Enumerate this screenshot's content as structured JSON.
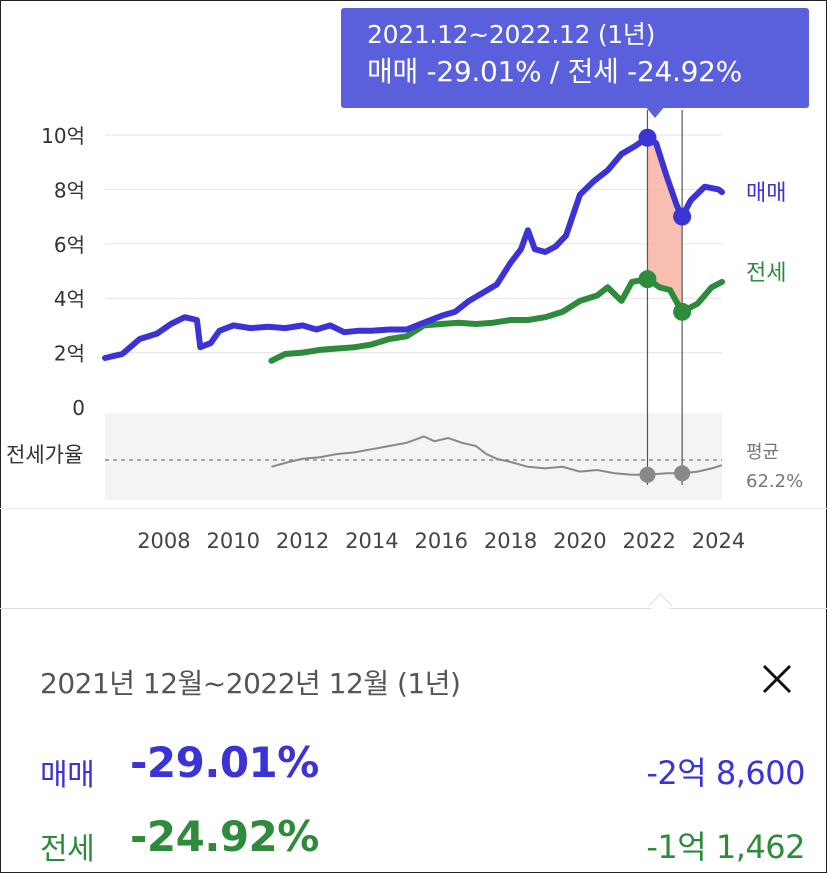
{
  "tooltip": {
    "period": "2021.12~2022.12 (1년)",
    "summary": "매매 -29.01%  /  전세 -24.92%"
  },
  "chart_data": {
    "type": "line",
    "title": "",
    "xlabel": "",
    "ylabel": "",
    "x_ticks": [
      "2008",
      "2010",
      "2012",
      "2014",
      "2016",
      "2018",
      "2020",
      "2022",
      "2024"
    ],
    "y_ticks": [
      "0",
      "2억",
      "4억",
      "6억",
      "8억",
      "10억"
    ],
    "ylim": [
      0,
      10
    ],
    "y_unit": "억",
    "colors": {
      "sale": "#3b33d6",
      "jeonse": "#2e8b3b",
      "ratio": "#888888",
      "highlight": "#f7b3a3"
    },
    "series": [
      {
        "name": "매매",
        "color": "#3b33d6",
        "points": [
          [
            2006.3,
            1.8
          ],
          [
            2006.8,
            1.95
          ],
          [
            2007.3,
            2.5
          ],
          [
            2007.8,
            2.7
          ],
          [
            2008.2,
            3.05
          ],
          [
            2008.6,
            3.3
          ],
          [
            2008.95,
            3.2
          ],
          [
            2009.05,
            2.2
          ],
          [
            2009.35,
            2.35
          ],
          [
            2009.6,
            2.8
          ],
          [
            2010.0,
            3.0
          ],
          [
            2010.5,
            2.9
          ],
          [
            2011.0,
            2.95
          ],
          [
            2011.5,
            2.9
          ],
          [
            2012.0,
            3.0
          ],
          [
            2012.4,
            2.85
          ],
          [
            2012.8,
            3.0
          ],
          [
            2013.2,
            2.75
          ],
          [
            2013.6,
            2.8
          ],
          [
            2014.0,
            2.8
          ],
          [
            2014.5,
            2.85
          ],
          [
            2015.0,
            2.85
          ],
          [
            2015.5,
            3.1
          ],
          [
            2016.0,
            3.35
          ],
          [
            2016.4,
            3.5
          ],
          [
            2016.8,
            3.9
          ],
          [
            2017.2,
            4.2
          ],
          [
            2017.6,
            4.5
          ],
          [
            2018.0,
            5.3
          ],
          [
            2018.3,
            5.8
          ],
          [
            2018.5,
            6.5
          ],
          [
            2018.7,
            5.8
          ],
          [
            2019.0,
            5.7
          ],
          [
            2019.3,
            5.9
          ],
          [
            2019.6,
            6.3
          ],
          [
            2020.0,
            7.8
          ],
          [
            2020.4,
            8.3
          ],
          [
            2020.8,
            8.7
          ],
          [
            2021.2,
            9.3
          ],
          [
            2021.6,
            9.6
          ],
          [
            2021.95,
            9.9
          ],
          [
            2022.2,
            9.7
          ],
          [
            2022.5,
            8.5
          ],
          [
            2022.8,
            7.4
          ],
          [
            2022.95,
            7.0
          ],
          [
            2023.2,
            7.6
          ],
          [
            2023.6,
            8.1
          ],
          [
            2024.0,
            8.0
          ],
          [
            2024.1,
            7.9
          ]
        ]
      },
      {
        "name": "전세",
        "color": "#2e8b3b",
        "points": [
          [
            2011.1,
            1.7
          ],
          [
            2011.5,
            1.95
          ],
          [
            2012.0,
            2.0
          ],
          [
            2012.5,
            2.1
          ],
          [
            2013.0,
            2.15
          ],
          [
            2013.5,
            2.2
          ],
          [
            2014.0,
            2.3
          ],
          [
            2014.5,
            2.5
          ],
          [
            2015.0,
            2.6
          ],
          [
            2015.5,
            3.0
          ],
          [
            2016.0,
            3.05
          ],
          [
            2016.5,
            3.1
          ],
          [
            2017.0,
            3.05
          ],
          [
            2017.5,
            3.1
          ],
          [
            2018.0,
            3.2
          ],
          [
            2018.5,
            3.2
          ],
          [
            2019.0,
            3.3
          ],
          [
            2019.5,
            3.5
          ],
          [
            2020.0,
            3.9
          ],
          [
            2020.5,
            4.1
          ],
          [
            2020.8,
            4.4
          ],
          [
            2021.2,
            3.9
          ],
          [
            2021.5,
            4.6
          ],
          [
            2021.95,
            4.7
          ],
          [
            2022.3,
            4.4
          ],
          [
            2022.6,
            4.3
          ],
          [
            2022.95,
            3.5
          ],
          [
            2023.4,
            3.8
          ],
          [
            2023.8,
            4.4
          ],
          [
            2024.1,
            4.6
          ]
        ]
      }
    ],
    "ratio_series": {
      "name": "전세가율",
      "average_label": "평균",
      "average_value": "62.2%",
      "points": [
        [
          2011.1,
          57
        ],
        [
          2011.6,
          60
        ],
        [
          2012.0,
          62
        ],
        [
          2012.5,
          63
        ],
        [
          2013.0,
          65
        ],
        [
          2013.5,
          66
        ],
        [
          2014.0,
          68
        ],
        [
          2014.5,
          70
        ],
        [
          2015.0,
          72
        ],
        [
          2015.5,
          76
        ],
        [
          2015.8,
          73
        ],
        [
          2016.2,
          75
        ],
        [
          2016.6,
          72
        ],
        [
          2017.0,
          70
        ],
        [
          2017.3,
          65
        ],
        [
          2017.6,
          62
        ],
        [
          2018.0,
          60
        ],
        [
          2018.5,
          57
        ],
        [
          2019.0,
          56
        ],
        [
          2019.5,
          57
        ],
        [
          2020.0,
          54
        ],
        [
          2020.5,
          55
        ],
        [
          2021.0,
          53
        ],
        [
          2021.5,
          52
        ],
        [
          2021.95,
          52
        ],
        [
          2022.5,
          53
        ],
        [
          2022.95,
          53
        ],
        [
          2023.4,
          54
        ],
        [
          2023.8,
          56
        ],
        [
          2024.1,
          58
        ]
      ]
    },
    "highlight_range": [
      2021.95,
      2022.95
    ],
    "series_labels": [
      "매매",
      "전세"
    ],
    "ratio_label": "전세가율"
  },
  "panel": {
    "title": "2021년 12월~2022년 12월 (1년)",
    "close_label": "×",
    "rows": [
      {
        "label": "매매",
        "percent": "-29.01%",
        "amount": "-2억 8,600",
        "color": "#3b33d6"
      },
      {
        "label": "전세",
        "percent": "-24.92%",
        "amount": "-1억 1,462",
        "color": "#2e8b3b"
      }
    ]
  }
}
